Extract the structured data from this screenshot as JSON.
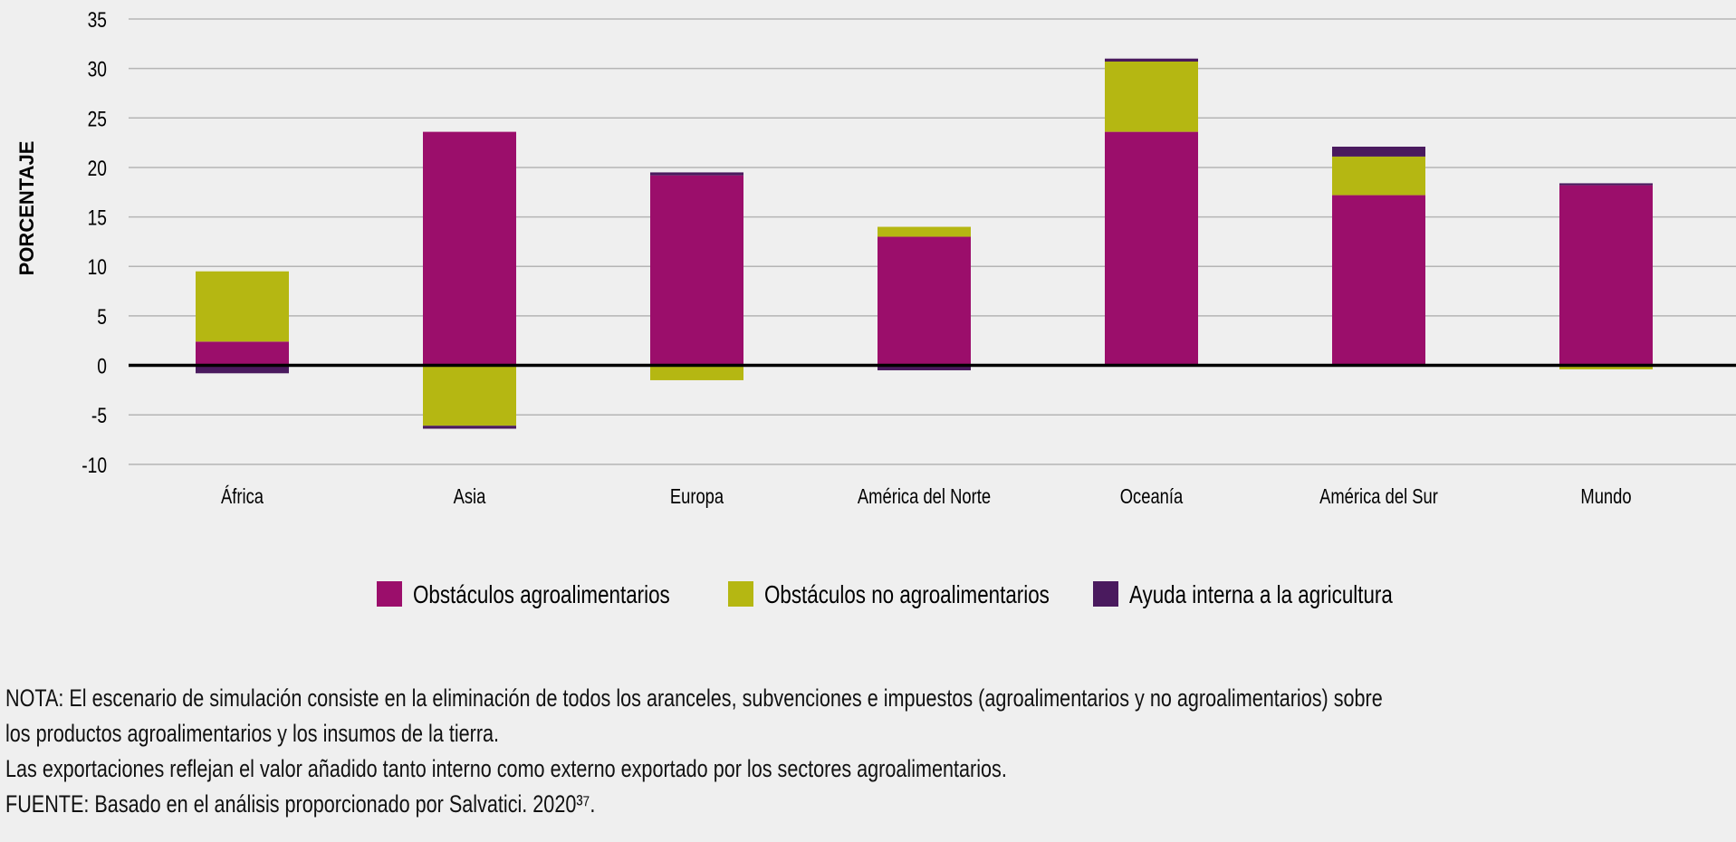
{
  "chart_data": {
    "type": "bar",
    "stacked": true,
    "title": "",
    "xlabel": "",
    "ylabel": "PORCENTAJE",
    "ylim": [
      -10,
      35
    ],
    "yticks": [
      35,
      30,
      25,
      20,
      15,
      10,
      5,
      0,
      -5,
      -10
    ],
    "grid": true,
    "legend_position": "bottom",
    "categories": [
      "África",
      "Asia",
      "Europa",
      "América del Norte",
      "Oceanía",
      "América del Sur",
      "Mundo"
    ],
    "series": [
      {
        "name": "Obstáculos agroalimentarios",
        "color": "#9b0e6b",
        "values": [
          2.4,
          23.6,
          19.2,
          13.0,
          23.6,
          17.2,
          18.2
        ]
      },
      {
        "name": "Obstáculos no agroalimentarios",
        "color": "#b5b712",
        "values": [
          7.1,
          -6.1,
          -1.5,
          1.0,
          7.1,
          3.9,
          -0.4
        ]
      },
      {
        "name": "Ayuda interna a la agricultura",
        "color": "#4a1a5e",
        "values": [
          -0.8,
          -0.3,
          0.3,
          -0.5,
          0.3,
          1.0,
          0.2
        ]
      }
    ]
  },
  "notes": [
    "NOTA: El escenario de simulación consiste en la eliminación de todos los aranceles, subvenciones e impuestos (agroalimentarios y no agroalimentarios) sobre",
    "los productos agroalimentarios y los insumos de la tierra.",
    "Las exportaciones reflejan el valor añadido tanto interno como externo exportado por los sectores agroalimentarios.",
    "FUENTE: Basado en el análisis proporcionado por Salvatici. 2020³⁷."
  ]
}
